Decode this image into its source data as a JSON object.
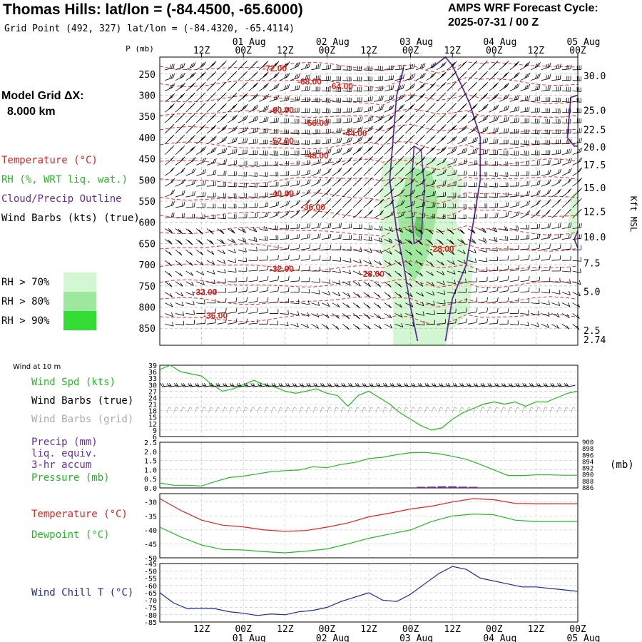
{
  "header": {
    "title": "Thomas Hills:  lat/lon = (-84.4500, -65.6000)",
    "grid_point": "Grid Point (492, 327) lat/lon = (-84.4320, -65.4114)",
    "cycle_line1": "AMPS WRF Forecast Cycle:",
    "cycle_line2": "2025-07-31 / 00  Z",
    "model_grid_line1": "Model Grid ΔX:",
    "model_grid_line2": "8.000 km"
  },
  "colors": {
    "temperature": "#e8201c",
    "rh": "#22bb22",
    "cloud": "#6a2ca0",
    "wind": "#000000",
    "wind_grid": "#aaaaaa",
    "wind_chill": "#1a2aa0",
    "rh70": "#d3f7d3",
    "rh80": "#9ee89e",
    "rh90": "#33dd33"
  },
  "time_axis": {
    "top_labels": [
      "12Z",
      "00Z",
      "12Z",
      "00Z",
      "12Z",
      "00Z",
      "12Z",
      "00Z",
      "12Z",
      "00Z"
    ],
    "bottom_labels": [
      "12Z",
      "00Z",
      "12Z",
      "00Z",
      "12Z",
      "00Z",
      "12Z",
      "00Z",
      "12Z",
      "00Z"
    ],
    "top_dates": [
      "01 Aug",
      "02 Aug",
      "03 Aug",
      "04 Aug",
      "05 Aug"
    ],
    "bottom_dates": [
      "01 Aug",
      "02 Aug",
      "03 Aug",
      "04 Aug",
      "05 Aug"
    ],
    "tick_hours": [
      12,
      24,
      36,
      48,
      60,
      72,
      84,
      96,
      108,
      120
    ],
    "date_hours": [
      24,
      48,
      72,
      96,
      120
    ],
    "range_hours": [
      0,
      120
    ]
  },
  "chart_data": [
    {
      "type": "heatmap",
      "panel": "sounding",
      "ylabel_left": "P (mb)",
      "ylabel_right": "Kft MSL",
      "p_ticks": [
        "250",
        "300",
        "350",
        "400",
        "450",
        "500",
        "550",
        "600",
        "650",
        "700",
        "750",
        "800",
        "850"
      ],
      "p_values": [
        250,
        300,
        350,
        400,
        450,
        500,
        550,
        600,
        650,
        700,
        750,
        800,
        850
      ],
      "ylim": [
        210,
        890
      ],
      "kft_ticks": [
        "30.0",
        "25.0",
        "22.5",
        "20.0",
        "17.5",
        "15.0",
        "12.5",
        "10.0",
        "7.5",
        "5.0",
        "2.5"
      ],
      "kft_pressures": [
        254,
        335,
        381,
        422,
        464,
        518,
        574,
        634,
        696,
        763,
        855
      ],
      "surface_kft": "2.74",
      "surface_pressure": 868,
      "legend": {
        "temperature": "Temperature (°C)",
        "rh": "RH (%, WRT liq. wat.)",
        "cloud": "Cloud/Precip Outline",
        "wind": "Wind Barbs (kts) (true)",
        "rh70": "RH > 70%",
        "rh80": "RH > 80%",
        "rh90": "RH > 90%"
      },
      "temperature_contours": [
        {
          "label": "-72.00",
          "hour": 33,
          "p": 237
        },
        {
          "label": "-68.00",
          "hour": 43,
          "p": 268
        },
        {
          "label": "-64.00",
          "hour": 52,
          "p": 279
        },
        {
          "label": "-60.00",
          "hour": 35,
          "p": 335
        },
        {
          "label": "-56.00",
          "hour": 45,
          "p": 366
        },
        {
          "label": "-52.00",
          "hour": 35,
          "p": 408
        },
        {
          "label": "-48.00",
          "hour": 45,
          "p": 442
        },
        {
          "label": "-44.00",
          "hour": 56,
          "p": 390
        },
        {
          "label": "-40.00",
          "hour": 35,
          "p": 532
        },
        {
          "label": "-36.00",
          "hour": 44,
          "p": 564
        },
        {
          "label": "-32.00",
          "hour": 35,
          "p": 710
        },
        {
          "label": "-28.00",
          "hour": 61,
          "p": 722
        },
        {
          "label": "-28.00",
          "hour": 81,
          "p": 663
        },
        {
          "label": "-32.00",
          "hour": 13,
          "p": 765
        },
        {
          "label": "-36.00",
          "hour": 16,
          "p": 820
        }
      ],
      "temperature_lines_p": [
        232,
        270,
        310,
        345,
        382,
        420,
        460,
        500,
        540,
        580,
        620,
        660,
        705,
        745,
        785,
        825
      ]
    },
    {
      "type": "line",
      "panel": "wind",
      "title": "Wind at 10 m",
      "y_ticks": [
        "39",
        "36",
        "33",
        "30",
        "27",
        "24",
        "21",
        "18",
        "15",
        "12",
        "9",
        "6"
      ],
      "ylim": [
        6,
        39
      ],
      "series": [
        {
          "name": "Wind Spd (kts)",
          "color": "#22bb22",
          "x": [
            0,
            3,
            6,
            9,
            12,
            15,
            18,
            21,
            24,
            27,
            30,
            33,
            36,
            39,
            42,
            45,
            48,
            51,
            54,
            57,
            60,
            63,
            66,
            69,
            72,
            75,
            78,
            81,
            84,
            87,
            90,
            93,
            96,
            99,
            102,
            105,
            108,
            111,
            114,
            117,
            120
          ],
          "y": [
            37,
            39,
            36,
            35,
            34,
            30,
            27,
            28,
            30,
            32,
            30,
            29,
            27,
            26,
            27,
            28,
            26,
            25,
            20,
            25,
            27,
            24,
            21,
            17,
            14,
            11,
            9,
            10,
            14,
            17,
            19,
            21,
            22,
            21,
            22,
            20,
            22,
            22,
            24,
            26,
            27
          ]
        }
      ],
      "legend_extra": [
        "Wind Barbs (true)",
        "Wind Barbs (grid)"
      ]
    },
    {
      "type": "line",
      "panel": "precip",
      "y_ticks_left": [
        "2.5",
        "2.0",
        "1.5",
        "1.0",
        "0.5",
        "0.0"
      ],
      "ylim_left": [
        0,
        2.5
      ],
      "y_ticks_right": [
        "900",
        "898",
        "896",
        "894",
        "892",
        "890",
        "888",
        "886"
      ],
      "ylim_right": [
        886,
        900
      ],
      "right_label": "(mb)",
      "series": [
        {
          "name": "Pressure (mb)",
          "color": "#22bb22",
          "axis": "right",
          "x": [
            0,
            4,
            8,
            12,
            16,
            20,
            24,
            28,
            32,
            36,
            40,
            44,
            48,
            52,
            56,
            60,
            64,
            68,
            72,
            76,
            80,
            84,
            88,
            92,
            96,
            100,
            104,
            108,
            112,
            116,
            120
          ],
          "y": [
            887.5,
            886.8,
            886.8,
            886.6,
            888,
            889.2,
            889.6,
            890.3,
            891,
            891.3,
            891.5,
            892.5,
            892.2,
            893.2,
            893.8,
            895,
            895.4,
            896.2,
            896.8,
            896.9,
            896.5,
            895.7,
            894.8,
            893.2,
            891.5,
            889.8,
            889.8,
            890,
            890,
            889.9,
            889.9
          ]
        }
      ],
      "precip": {
        "name": "Precip (mm)",
        "color": "#6a2ca0",
        "x": [
          72,
          75,
          78,
          81,
          84,
          87,
          90
        ],
        "y": [
          0.0,
          0.02,
          0.03,
          0.05,
          0.05,
          0.03,
          0.02
        ]
      },
      "legend": [
        "Precip (mm)",
        "liq. equiv.",
        "3-hr accum",
        "Pressure (mb)"
      ]
    },
    {
      "type": "line",
      "panel": "temperature",
      "y_ticks": [
        "-30",
        "-35",
        "-40",
        "-45",
        "-50"
      ],
      "ylim": [
        -50,
        -27
      ],
      "series": [
        {
          "name": "Temperature (°C)",
          "color": "#e8201c",
          "x": [
            0,
            6,
            12,
            18,
            24,
            30,
            36,
            42,
            48,
            54,
            60,
            66,
            72,
            78,
            84,
            90,
            96,
            102,
            108,
            114,
            120
          ],
          "y": [
            -28.8,
            -33,
            -36.5,
            -38.3,
            -38.9,
            -40,
            -40.5,
            -40.2,
            -39,
            -37.5,
            -35.3,
            -34,
            -32.5,
            -31.5,
            -30,
            -28.8,
            -29.2,
            -30.5,
            -30.6,
            -30.6,
            -30.6
          ]
        },
        {
          "name": "Dewpoint (°C)",
          "color": "#22bb22",
          "x": [
            0,
            6,
            12,
            18,
            24,
            30,
            36,
            42,
            48,
            54,
            60,
            66,
            72,
            78,
            84,
            90,
            96,
            102,
            108,
            114,
            120
          ],
          "y": [
            -39,
            -42.5,
            -45.4,
            -47,
            -47.2,
            -47.8,
            -48.2,
            -47.6,
            -46.8,
            -45,
            -43,
            -41.5,
            -40,
            -37,
            -35,
            -34.3,
            -34.6,
            -36.5,
            -37,
            -37,
            -37
          ]
        }
      ]
    },
    {
      "type": "line",
      "panel": "windchill",
      "y_ticks": [
        "-45",
        "-50",
        "-55",
        "-60",
        "-65",
        "-70",
        "-75",
        "-80",
        "-85"
      ],
      "ylim": [
        -85,
        -45
      ],
      "series": [
        {
          "name": "Wind Chill T (°C)",
          "color": "#1a2aa0",
          "x": [
            0,
            4,
            8,
            12,
            16,
            20,
            24,
            28,
            32,
            36,
            40,
            44,
            48,
            52,
            56,
            60,
            64,
            68,
            72,
            76,
            80,
            84,
            88,
            92,
            96,
            100,
            104,
            108,
            112,
            116,
            120
          ],
          "y": [
            -65,
            -72,
            -76,
            -75.5,
            -76,
            -78,
            -79,
            -80.5,
            -79.5,
            -80,
            -78,
            -77,
            -75,
            -71,
            -68,
            -65,
            -70,
            -71,
            -66,
            -59,
            -52,
            -47,
            -49,
            -55,
            -57,
            -59,
            -61,
            -61,
            -62,
            -63,
            -64
          ]
        }
      ]
    }
  ]
}
